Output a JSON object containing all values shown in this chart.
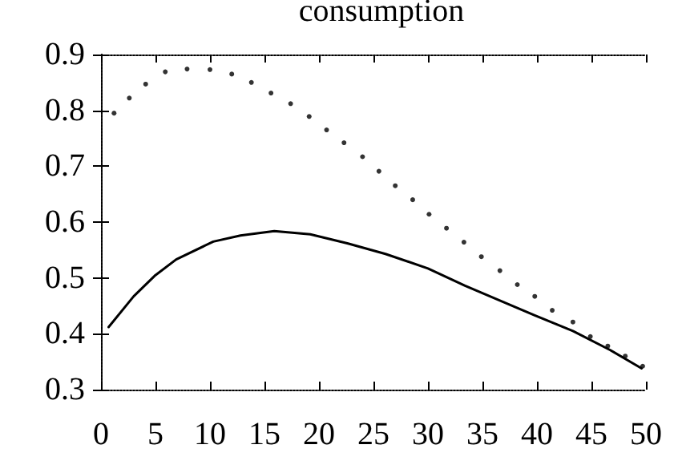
{
  "chart_data": {
    "type": "line",
    "title": "consumption",
    "xlim": [
      0,
      50
    ],
    "xticks": [
      0,
      5,
      10,
      15,
      20,
      25,
      30,
      35,
      40,
      45,
      50
    ],
    "ylim": [
      0.3,
      0.9
    ],
    "yticks": [
      0.3,
      0.4,
      0.5,
      0.6,
      0.7,
      0.8,
      0.9
    ],
    "grid": false,
    "series": [
      {
        "type": "scatter",
        "marker": "circle",
        "color": "#000000",
        "x": [
          1.2,
          2.6,
          4.1,
          5.9,
          7.9,
          10,
          12,
          13.8,
          15.6,
          17.4,
          19.1,
          20.7,
          22.3,
          24,
          25.5,
          27,
          28.6,
          30.1,
          31.7,
          33.3,
          34.9,
          36.6,
          38.2,
          39.8,
          41.4,
          43.3,
          44.9,
          46.5,
          48.1,
          49.7
        ],
        "values": [
          0.795,
          0.822,
          0.847,
          0.869,
          0.874,
          0.873,
          0.865,
          0.85,
          0.831,
          0.812,
          0.789,
          0.765,
          0.742,
          0.717,
          0.691,
          0.665,
          0.64,
          0.614,
          0.589,
          0.564,
          0.538,
          0.513,
          0.488,
          0.467,
          0.442,
          0.421,
          0.395,
          0.378,
          0.36,
          0.342
        ]
      },
      {
        "marker": "none",
        "line_style": "solid",
        "color": "#000000",
        "x": [
          0.7,
          3,
          5,
          6.9,
          10.3,
          12.8,
          15.9,
          19.2,
          22.6,
          26.1,
          30,
          33.4,
          36.9,
          39.8,
          43.3,
          46.7,
          49.6
        ],
        "values": [
          0.412,
          0.467,
          0.505,
          0.533,
          0.565,
          0.576,
          0.584,
          0.578,
          0.562,
          0.543,
          0.517,
          0.486,
          0.457,
          0.433,
          0.405,
          0.371,
          0.338
        ]
      }
    ]
  }
}
